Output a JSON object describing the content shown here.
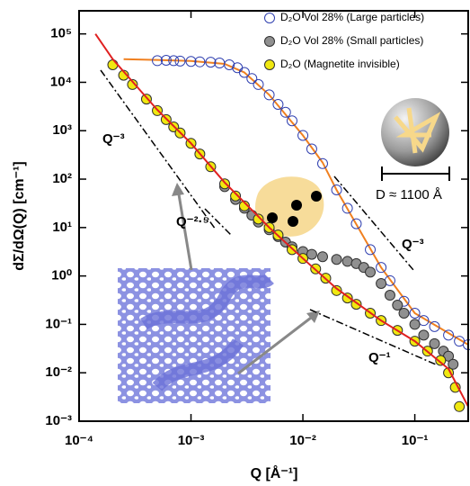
{
  "chart_data": {
    "type": "scatter",
    "x_label": "Q [Å⁻¹]",
    "y_label": "dΣ/dΩ(Q) [cm⁻¹]",
    "log_x": true,
    "log_y": true,
    "xlim": [
      0.0001,
      0.3
    ],
    "ylim": [
      0.001,
      300000
    ],
    "xticks": [
      {
        "value": 0.0001,
        "label": "10⁻⁴"
      },
      {
        "value": 0.001,
        "label": "10⁻³"
      },
      {
        "value": 0.01,
        "label": "10⁻²"
      },
      {
        "value": 0.1,
        "label": "10⁻¹"
      }
    ],
    "yticks": [
      {
        "value": 0.001,
        "label": "10⁻³"
      },
      {
        "value": 0.01,
        "label": "10⁻²"
      },
      {
        "value": 0.1,
        "label": "10⁻¹"
      },
      {
        "value": 1,
        "label": "10⁰"
      },
      {
        "value": 10,
        "label": "10¹"
      },
      {
        "value": 100,
        "label": "10²"
      },
      {
        "value": 1000,
        "label": "10³"
      },
      {
        "value": 10000,
        "label": "10⁴"
      },
      {
        "value": 100000,
        "label": "10⁵"
      }
    ],
    "legend": "top-right",
    "series": [
      {
        "mode": "line",
        "color": "#f08020",
        "x": [
          0.00025,
          0.0005,
          0.001,
          0.002,
          0.003,
          0.005,
          0.01,
          0.015,
          0.02,
          0.05,
          0.1,
          0.3
        ],
        "values": [
          30000,
          29000,
          27500,
          24000,
          16000,
          5500,
          800,
          220,
          60,
          1.5,
          0.17,
          0.038
        ]
      },
      {
        "name": "D₂O Vol 28% (Large particles)",
        "mode": "marker",
        "color": "#3040b0",
        "fill": "none",
        "x": [
          0.0005,
          0.0006,
          0.0007,
          0.0008,
          0.001,
          0.0012,
          0.0015,
          0.0018,
          0.0022,
          0.0026,
          0.003,
          0.0035,
          0.004,
          0.005,
          0.006,
          0.007,
          0.008,
          0.01,
          0.012,
          0.015,
          0.02,
          0.025,
          0.03,
          0.04,
          0.05,
          0.06,
          0.08,
          0.1,
          0.12,
          0.15,
          0.2,
          0.25,
          0.3
        ],
        "values": [
          28000,
          28500,
          28000,
          27500,
          27000,
          26500,
          26000,
          25000,
          23000,
          20000,
          16000,
          12000,
          9000,
          5500,
          3500,
          2400,
          1600,
          800,
          420,
          210,
          60,
          25,
          12,
          3.5,
          1.5,
          0.8,
          0.3,
          0.17,
          0.12,
          0.09,
          0.06,
          0.045,
          0.038
        ]
      },
      {
        "name": "D₂O Vol 28% (Small particles)",
        "mode": "marker",
        "color": "#303030",
        "fill": "#909090",
        "x": [
          0.002,
          0.0025,
          0.003,
          0.0035,
          0.004,
          0.005,
          0.006,
          0.007,
          0.008,
          0.01,
          0.012,
          0.015,
          0.02,
          0.025,
          0.03,
          0.035,
          0.04,
          0.05,
          0.06,
          0.07,
          0.08,
          0.1,
          0.12,
          0.15,
          0.18,
          0.2,
          0.22
        ],
        "values": [
          70,
          38,
          25,
          18,
          13,
          9,
          6.5,
          5,
          4,
          3.2,
          2.8,
          2.5,
          2.2,
          2,
          1.8,
          1.5,
          1.2,
          0.7,
          0.4,
          0.25,
          0.17,
          0.1,
          0.06,
          0.04,
          0.028,
          0.022,
          0.015
        ]
      },
      {
        "name": "D₂O (Magnetite invisible)",
        "mode": "marker",
        "color": "#303030",
        "fill": "#f0e810",
        "x": [
          0.0002,
          0.00025,
          0.0003,
          0.0004,
          0.0005,
          0.0006,
          0.0007,
          0.0008,
          0.001,
          0.0012,
          0.0015,
          0.002,
          0.0025,
          0.003,
          0.004,
          0.005,
          0.006,
          0.008,
          0.01,
          0.013,
          0.016,
          0.02,
          0.025,
          0.03,
          0.04,
          0.05,
          0.07,
          0.1,
          0.13,
          0.17,
          0.2,
          0.23,
          0.25
        ],
        "values": [
          23000,
          14000,
          9000,
          4500,
          2600,
          1700,
          1200,
          900,
          550,
          330,
          180,
          80,
          45,
          28,
          15,
          10,
          7,
          3.5,
          2.3,
          1.4,
          0.9,
          0.5,
          0.35,
          0.26,
          0.17,
          0.12,
          0.075,
          0.045,
          0.028,
          0.018,
          0.01,
          0.005,
          0.002
        ]
      },
      {
        "mode": "line",
        "color": "#e02020",
        "x": [
          0.00014,
          0.0002,
          0.0005,
          0.001,
          0.002,
          0.005,
          0.01,
          0.02,
          0.05,
          0.1,
          0.2,
          0.3
        ],
        "values": [
          100000,
          30000,
          2700,
          550,
          85,
          10,
          2.3,
          0.55,
          0.12,
          0.045,
          0.012,
          0.002
        ]
      }
    ],
    "annotations": [
      "Q⁻³",
      "Q⁻²·⁵",
      "Q⁻³",
      "Q⁻¹",
      "D ≈ 1100 Å"
    ]
  }
}
